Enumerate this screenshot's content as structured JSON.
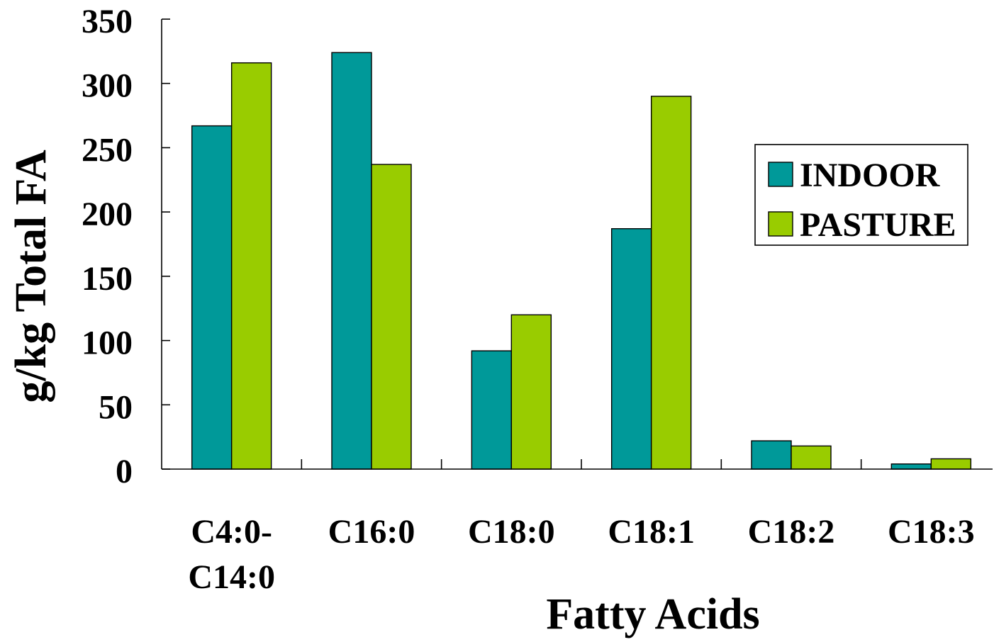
{
  "chart_data": {
    "type": "bar",
    "xlabel": "Fatty Acids",
    "ylabel": "g/kg Total FA",
    "categories": [
      "C4:0-C14:0",
      "C16:0",
      "C18:0",
      "C18:1",
      "C18:2",
      "C18:3"
    ],
    "series": [
      {
        "name": "INDOOR",
        "color": "#009999",
        "values": [
          267,
          324,
          92,
          187,
          22,
          4
        ]
      },
      {
        "name": "PASTURE",
        "color": "#99CC00",
        "values": [
          316,
          237,
          120,
          290,
          18,
          8
        ]
      }
    ],
    "ylim": [
      0,
      350
    ],
    "yticks": [
      0,
      50,
      100,
      150,
      200,
      250,
      300,
      350
    ],
    "grid": false,
    "legend_position": "right"
  }
}
